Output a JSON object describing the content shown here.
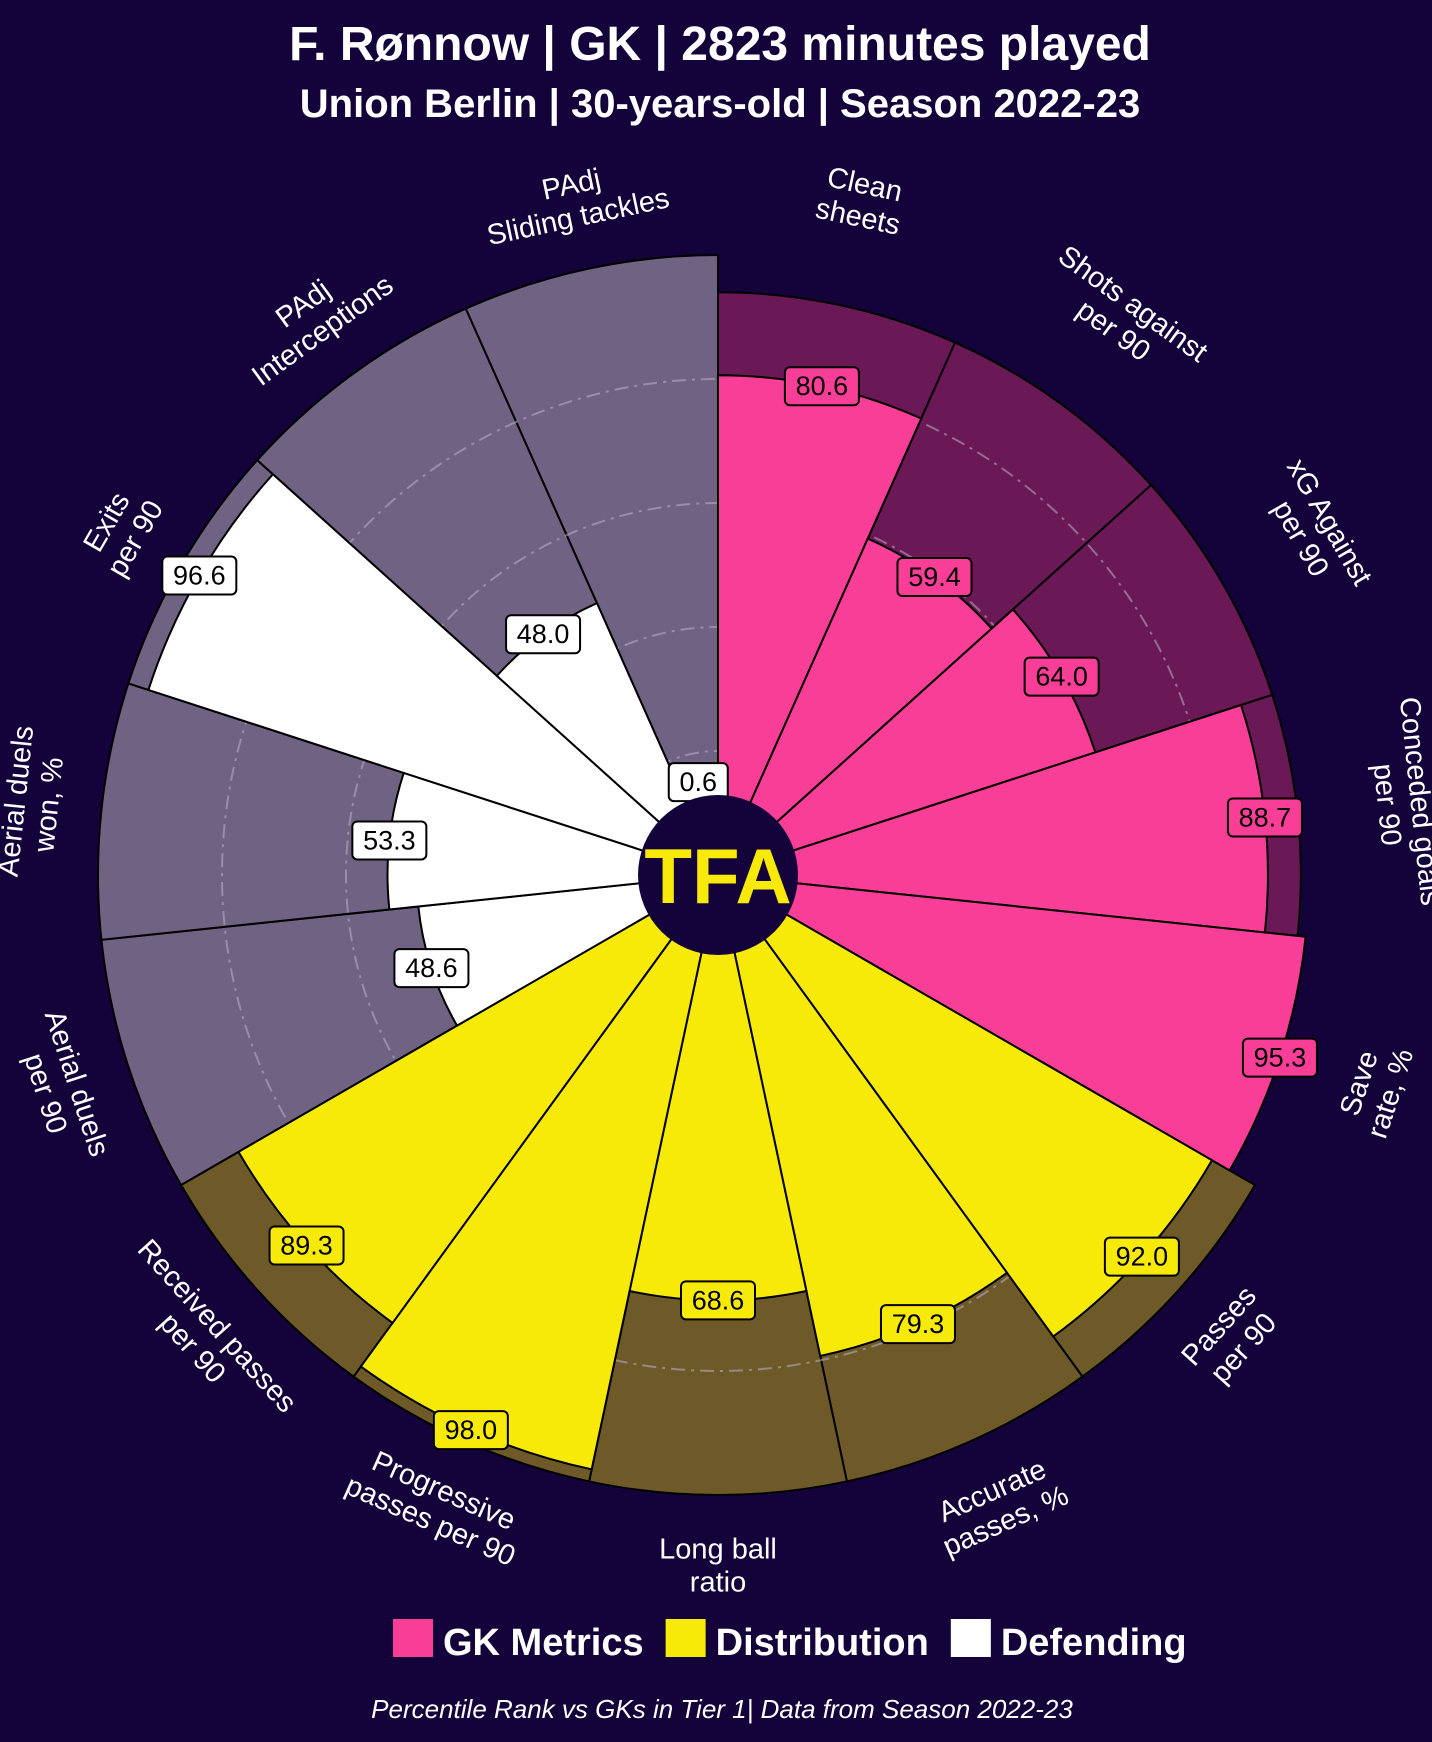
{
  "chart_data": {
    "type": "pizza",
    "title": "F. Rønnow | GK | 2823 minutes played",
    "subtitle": "Union Berlin | 30-years-old | Season 2022-23",
    "center_logo": "TFA",
    "footer": "Percentile Rank vs GKs in Tier 1| Data from Season 2022-23",
    "value_max": 100,
    "legend": [
      {
        "label": "GK Metrics",
        "color": "#f83e97"
      },
      {
        "label": "Distribution",
        "color": "#f7ea08"
      },
      {
        "label": "Defending",
        "color": "#ffffff"
      }
    ],
    "colors": {
      "gk_fill": "#f83e97",
      "gk_bg": "#6b1857",
      "dist_fill": "#f7ea08",
      "dist_bg": "#6e5a28",
      "def_fill": "#ffffff",
      "def_bg": "#6f6283",
      "background": "#13033a"
    },
    "parameters": [
      {
        "lines": [
          "Clean",
          "sheets"
        ],
        "value": 80.6,
        "group": "gk"
      },
      {
        "lines": [
          "Shots against",
          "per 90"
        ],
        "value": 59.4,
        "group": "gk"
      },
      {
        "lines": [
          "xG Against",
          "per 90"
        ],
        "value": 64.0,
        "group": "gk"
      },
      {
        "lines": [
          "Conceded goals",
          "per 90"
        ],
        "value": 88.7,
        "group": "gk"
      },
      {
        "lines": [
          "Save",
          "rate, %"
        ],
        "value": 95.3,
        "group": "gk"
      },
      {
        "lines": [
          "Passes",
          "per 90"
        ],
        "value": 92.0,
        "group": "dist"
      },
      {
        "lines": [
          "Accurate",
          "passes, %"
        ],
        "value": 79.3,
        "group": "dist"
      },
      {
        "lines": [
          "Long ball",
          "ratio"
        ],
        "value": 68.6,
        "group": "dist"
      },
      {
        "lines": [
          "Progressive",
          "passes per 90"
        ],
        "value": 98.0,
        "group": "dist"
      },
      {
        "lines": [
          "Received passes",
          "per 90"
        ],
        "value": 89.3,
        "group": "dist"
      },
      {
        "lines": [
          "Aerial duels",
          "per 90"
        ],
        "value": 48.6,
        "group": "def"
      },
      {
        "lines": [
          "Aerial duels",
          "won, %"
        ],
        "value": 53.3,
        "group": "def"
      },
      {
        "lines": [
          "Exits",
          "per 90"
        ],
        "value": 96.6,
        "group": "def"
      },
      {
        "lines": [
          "PAdj",
          "Interceptions"
        ],
        "value": 48.0,
        "group": "def"
      },
      {
        "lines": [
          "PAdj",
          "Sliding tackles"
        ],
        "value": 0.6,
        "group": "def"
      }
    ]
  }
}
